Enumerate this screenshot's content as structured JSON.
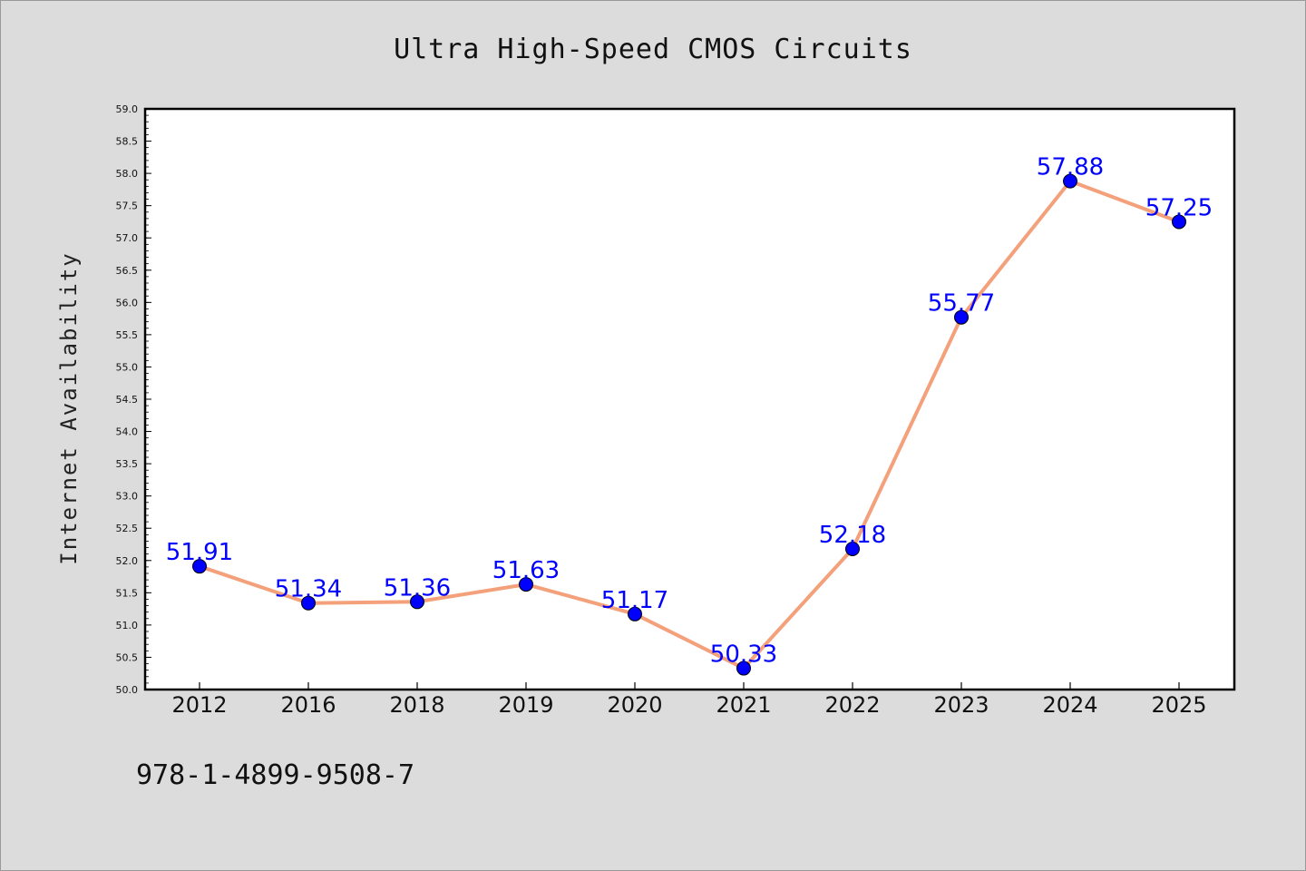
{
  "chart_data": {
    "type": "line",
    "title": "Ultra High-Speed CMOS Circuits",
    "ylabel": "Internet Availability",
    "xlabel": "",
    "categories": [
      "2012",
      "2016",
      "2018",
      "2019",
      "2020",
      "2021",
      "2022",
      "2023",
      "2024",
      "2025"
    ],
    "series": [
      {
        "values": [
          51.91,
          51.34,
          51.36,
          51.63,
          51.17,
          50.33,
          52.18,
          55.77,
          57.88,
          57.25
        ],
        "data_labels": [
          "51.91",
          "51.34",
          "51.36",
          "51.63",
          "51.17",
          "50.33",
          "52.18",
          "55.77",
          "57.88",
          "57.25"
        ]
      }
    ],
    "ylim": [
      50.0,
      59.0
    ],
    "yticks": [
      "50.0",
      "50.5",
      "51.0",
      "51.5",
      "52.0",
      "52.5",
      "53.0",
      "53.5",
      "54.0",
      "54.5",
      "55.0",
      "55.5",
      "56.0",
      "56.5",
      "57.0",
      "57.5",
      "58.0",
      "58.5",
      "59.0"
    ],
    "grid": false,
    "legend": "none",
    "colors": {
      "line": "#f4a07a",
      "marker": "#0000ff",
      "label": "#0000ff",
      "background": "#dcdcdc",
      "plot_bg": "#ffffff"
    }
  },
  "footer": {
    "isbn": "978-1-4899-9508-7"
  }
}
